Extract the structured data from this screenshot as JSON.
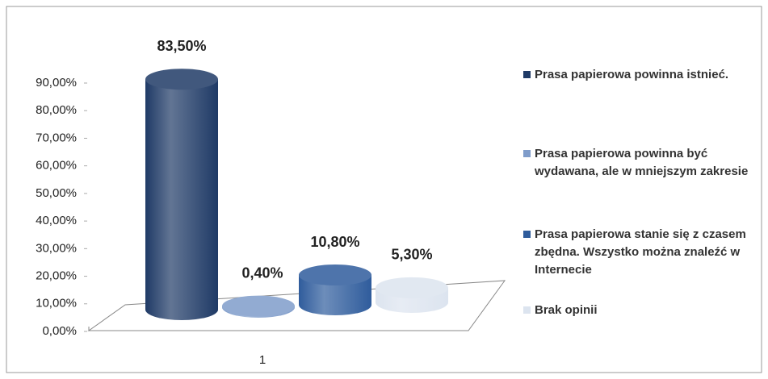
{
  "chart_data": {
    "type": "bar3d",
    "categories": [
      "1"
    ],
    "series": [
      {
        "name": "Prasa papierowa powinna istnieć.",
        "color": "#1f3a66",
        "values": [
          83.5
        ],
        "value_labels": [
          "83,50%"
        ]
      },
      {
        "name": "Prasa papierowa powinna być wydawana, ale w mniejszym zakresie",
        "color": "#7f9cca",
        "values": [
          0.4
        ],
        "value_labels": [
          "0,40%"
        ]
      },
      {
        "name": "Prasa papierowa stanie się z czasem zbędna. Wszystko można znaleźć w Internecie",
        "color": "#2f5c9c",
        "values": [
          10.8
        ],
        "value_labels": [
          "10,80%"
        ]
      },
      {
        "name": "Brak opinii",
        "color": "#dce4ef",
        "values": [
          5.3
        ],
        "value_labels": [
          "5,30%"
        ]
      }
    ],
    "ylim": [
      0,
      90
    ],
    "yticks": [
      {
        "value": 0,
        "label": "0,00%"
      },
      {
        "value": 10,
        "label": "10,00%"
      },
      {
        "value": 20,
        "label": "20,00%"
      },
      {
        "value": 30,
        "label": "30,00%"
      },
      {
        "value": 40,
        "label": "40,00%"
      },
      {
        "value": 50,
        "label": "50,00%"
      },
      {
        "value": 60,
        "label": "60,00%"
      },
      {
        "value": 70,
        "label": "70,00%"
      },
      {
        "value": 80,
        "label": "80,00%"
      },
      {
        "value": 90,
        "label": "90,00%"
      }
    ],
    "legend": "right"
  }
}
